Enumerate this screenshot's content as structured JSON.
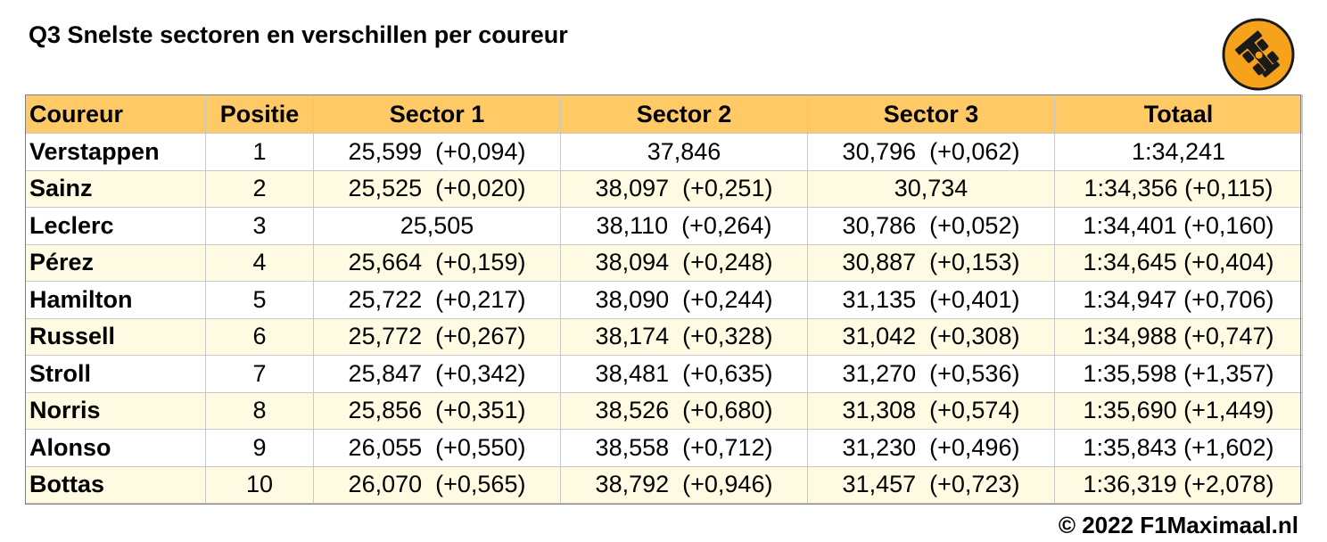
{
  "title": "Q3 Snelste sectoren en verschillen per coureur",
  "columns": {
    "driver": "Coureur",
    "position": "Positie",
    "sector1": "Sector 1",
    "sector2": "Sector 2",
    "sector3": "Sector 3",
    "total": "Totaal"
  },
  "rows": [
    {
      "driver": "Verstappen",
      "position": "1",
      "sector1": "25,599  (+0,094)",
      "sector2": "37,846",
      "sector3": "30,796  (+0,062)",
      "total": "1:34,241"
    },
    {
      "driver": "Sainz",
      "position": "2",
      "sector1": "25,525  (+0,020)",
      "sector2": "38,097  (+0,251)",
      "sector3": "30,734",
      "total": "1:34,356 (+0,115)"
    },
    {
      "driver": "Leclerc",
      "position": "3",
      "sector1": "25,505",
      "sector2": "38,110  (+0,264)",
      "sector3": "30,786  (+0,052)",
      "total": "1:34,401 (+0,160)"
    },
    {
      "driver": "Pérez",
      "position": "4",
      "sector1": "25,664  (+0,159)",
      "sector2": "38,094  (+0,248)",
      "sector3": "30,887  (+0,153)",
      "total": "1:34,645 (+0,404)"
    },
    {
      "driver": "Hamilton",
      "position": "5",
      "sector1": "25,722  (+0,217)",
      "sector2": "38,090  (+0,244)",
      "sector3": "31,135  (+0,401)",
      "total": "1:34,947 (+0,706)"
    },
    {
      "driver": "Russell",
      "position": "6",
      "sector1": "25,772  (+0,267)",
      "sector2": "38,174  (+0,328)",
      "sector3": "31,042  (+0,308)",
      "total": "1:34,988 (+0,747)"
    },
    {
      "driver": "Stroll",
      "position": "7",
      "sector1": "25,847  (+0,342)",
      "sector2": "38,481  (+0,635)",
      "sector3": "31,270  (+0,536)",
      "total": "1:35,598 (+1,357)"
    },
    {
      "driver": "Norris",
      "position": "8",
      "sector1": "25,856  (+0,351)",
      "sector2": "38,526  (+0,680)",
      "sector3": "31,308  (+0,574)",
      "total": "1:35,690 (+1,449)"
    },
    {
      "driver": "Alonso",
      "position": "9",
      "sector1": "26,055  (+0,550)",
      "sector2": "38,558  (+0,712)",
      "sector3": "31,230  (+0,496)",
      "total": "1:35,843 (+1,602)"
    },
    {
      "driver": "Bottas",
      "position": "10",
      "sector1": "26,070  (+0,565)",
      "sector2": "38,792  (+0,946)",
      "sector3": "31,457  (+0,723)",
      "total": "1:36,319 (+2,078)"
    }
  ],
  "footer": "© 2022 F1Maximaal.nl",
  "logo_icon": "race-car-icon",
  "colors": {
    "header_bg": "#ffc966",
    "alt_row_bg": "#fffbe3",
    "logo_bg": "#f7a21b"
  }
}
